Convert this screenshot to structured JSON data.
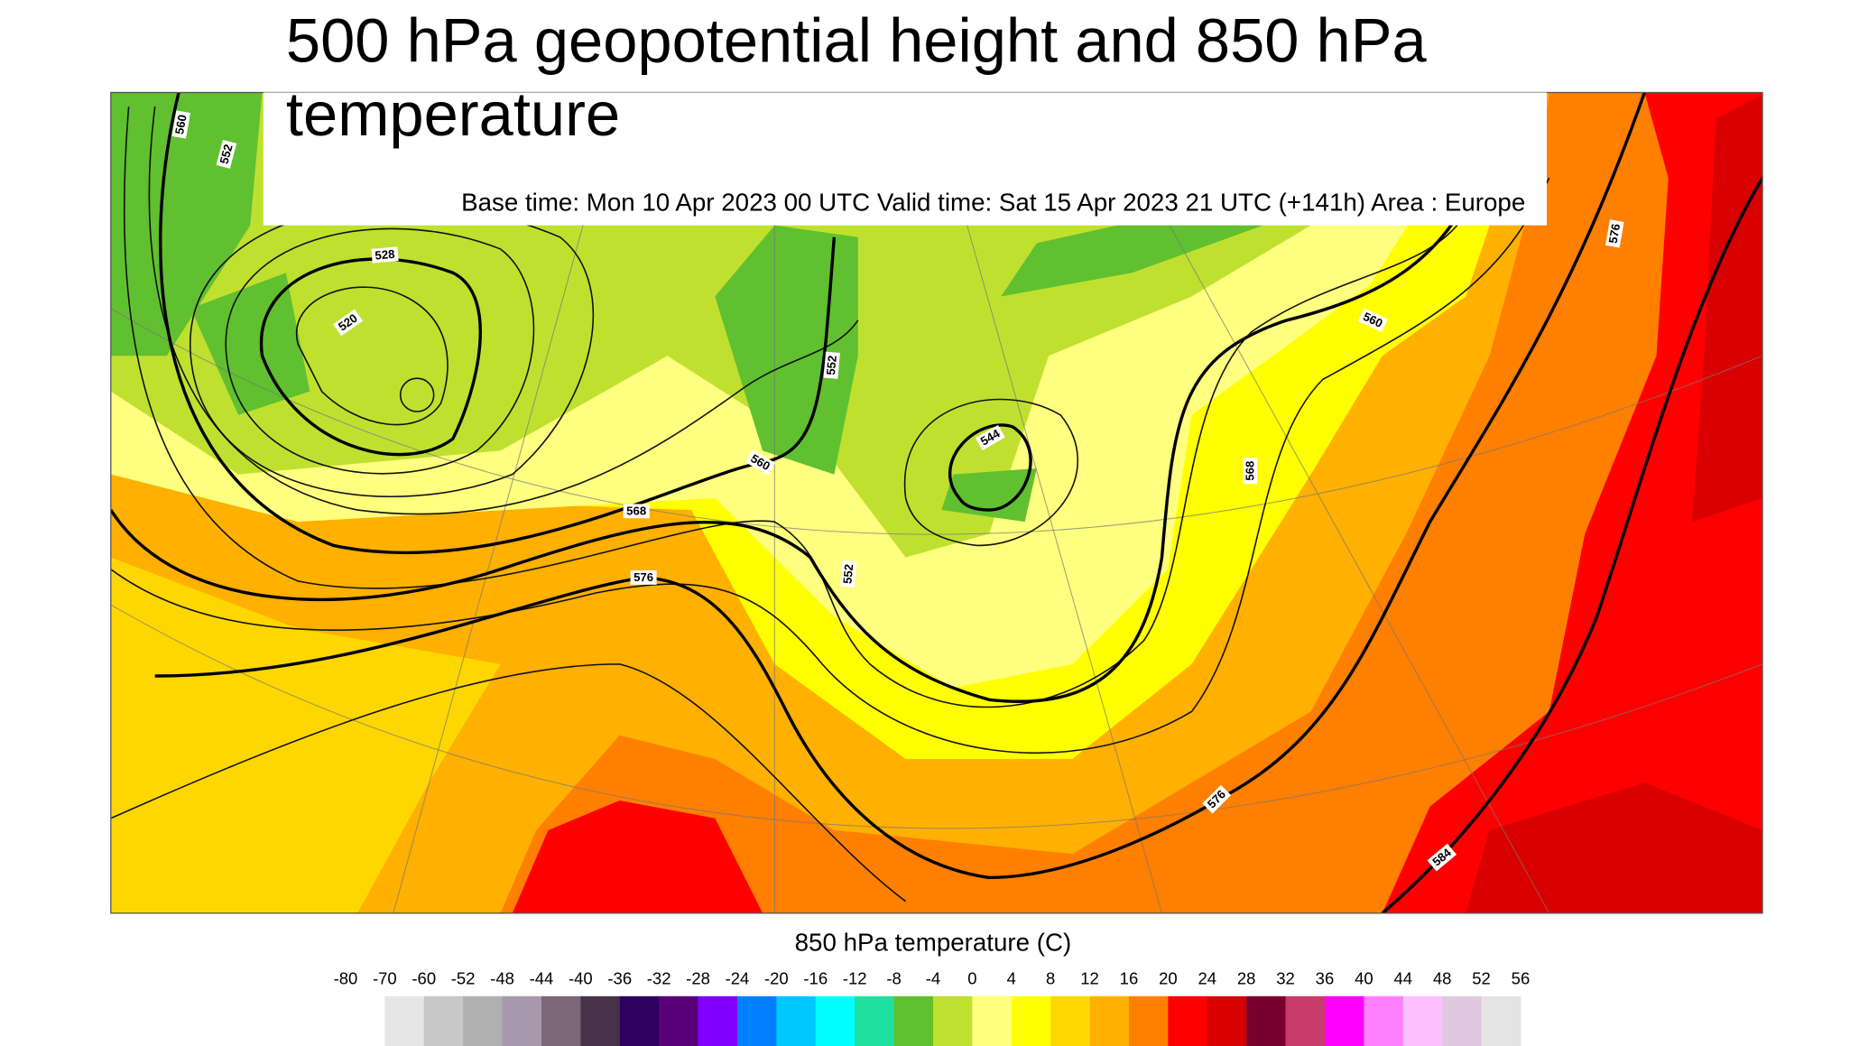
{
  "title": "500 hPa geopotential height and 850 hPa temperature",
  "subtitle": "Base time: Mon 10 Apr 2023 00 UTC Valid time: Sat 15 Apr 2023 21 UTC (+141h) Area : Europe",
  "contour_labels": [
    560,
    552,
    528,
    520,
    552,
    560,
    568,
    576,
    552,
    544,
    568,
    560,
    576,
    576,
    584
  ],
  "colorbar": {
    "title": "850 hPa temperature (C)",
    "ticks": [
      -80,
      -70,
      -60,
      -52,
      -48,
      -44,
      -40,
      -36,
      -32,
      -28,
      -24,
      -20,
      -16,
      -12,
      -8,
      -4,
      0,
      4,
      8,
      12,
      16,
      20,
      24,
      28,
      32,
      36,
      40,
      44,
      48,
      52,
      56
    ],
    "colors": [
      "#e6e6e6",
      "#c8c8c8",
      "#b0b0b0",
      "#a898ae",
      "#7a6878",
      "#46334a",
      "#2e0060",
      "#5a0078",
      "#8000ff",
      "#0080ff",
      "#00c8ff",
      "#00ffff",
      "#20e0a0",
      "#60c030",
      "#c0e030",
      "#ffff80",
      "#ffff00",
      "#ffd700",
      "#ffb000",
      "#ff7f00",
      "#ff0000",
      "#d80000",
      "#780030",
      "#c83c6c",
      "#ff00ff",
      "#ff80ff",
      "#ffc0ff",
      "#e0c8e0",
      "#e4e4e4"
    ]
  }
}
